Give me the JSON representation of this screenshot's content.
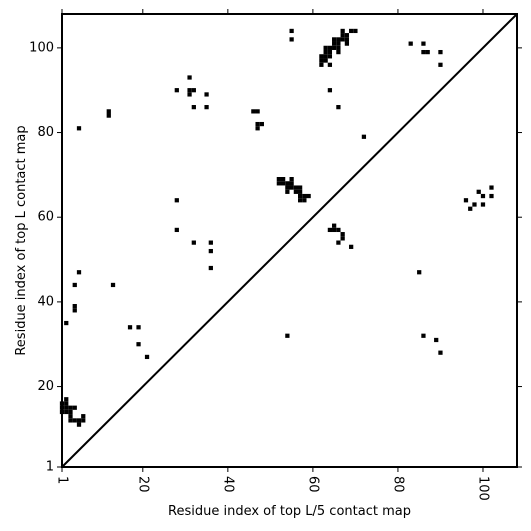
{
  "chart_data": {
    "type": "scatter",
    "xlabel": "Residue index of top L/5 contact map",
    "ylabel": "Residue index of top L contact map",
    "xlim": [
      1,
      108
    ],
    "ylim": [
      1,
      108
    ],
    "x_ticks": [
      1,
      20,
      40,
      60,
      80,
      100
    ],
    "y_ticks": [
      1,
      20,
      40,
      60,
      80,
      100
    ],
    "diagonal_line": true,
    "marker": "square",
    "marker_color": "#000000",
    "points_upper": [
      [
        5,
        81
      ],
      [
        12,
        84
      ],
      [
        12,
        85
      ],
      [
        28,
        90
      ],
      [
        31,
        93
      ],
      [
        31,
        89
      ],
      [
        31,
        90
      ],
      [
        32,
        90
      ],
      [
        32,
        86
      ],
      [
        35,
        89
      ],
      [
        35,
        86
      ],
      [
        46,
        85
      ],
      [
        47,
        85
      ],
      [
        47,
        81
      ],
      [
        47,
        82
      ],
      [
        48,
        82
      ],
      [
        55,
        104
      ],
      [
        55,
        102
      ],
      [
        62,
        98
      ],
      [
        62,
        97
      ],
      [
        62,
        96
      ],
      [
        63,
        97
      ],
      [
        63,
        98
      ],
      [
        63,
        99
      ],
      [
        63,
        100
      ],
      [
        64,
        100
      ],
      [
        64,
        99
      ],
      [
        64,
        98
      ],
      [
        64,
        96
      ],
      [
        64,
        90
      ],
      [
        65,
        100
      ],
      [
        65,
        101
      ],
      [
        65,
        102
      ],
      [
        66,
        101
      ],
      [
        66,
        102
      ],
      [
        66,
        100
      ],
      [
        66,
        99
      ],
      [
        66,
        86
      ],
      [
        67,
        103
      ],
      [
        67,
        102
      ],
      [
        67,
        104
      ],
      [
        68,
        102
      ],
      [
        68,
        103
      ],
      [
        68,
        101
      ],
      [
        69,
        104
      ],
      [
        70,
        104
      ],
      [
        72,
        79
      ],
      [
        83,
        101
      ],
      [
        86,
        101
      ],
      [
        86,
        99
      ],
      [
        87,
        99
      ],
      [
        90,
        99
      ],
      [
        90,
        96
      ],
      [
        28,
        64
      ],
      [
        28,
        57
      ],
      [
        32,
        54
      ],
      [
        36,
        54
      ],
      [
        36,
        52
      ],
      [
        36,
        48
      ],
      [
        52,
        69
      ],
      [
        52,
        68
      ],
      [
        53,
        68
      ],
      [
        53,
        69
      ],
      [
        54,
        68
      ],
      [
        54,
        67
      ],
      [
        54,
        66
      ],
      [
        55,
        67
      ],
      [
        55,
        68
      ],
      [
        55,
        69
      ],
      [
        56,
        67
      ],
      [
        56,
        66
      ],
      [
        57,
        67
      ],
      [
        57,
        66
      ],
      [
        57,
        65
      ],
      [
        57,
        64
      ],
      [
        58,
        64
      ],
      [
        58,
        65
      ],
      [
        59,
        65
      ],
      [
        64,
        57
      ],
      [
        65,
        58
      ],
      [
        65,
        57
      ],
      [
        66,
        57
      ],
      [
        66,
        54
      ],
      [
        67,
        55
      ],
      [
        67,
        56
      ],
      [
        69,
        53
      ],
      [
        96,
        64
      ],
      [
        97,
        62
      ],
      [
        98,
        63
      ],
      [
        99,
        66
      ],
      [
        100,
        65
      ],
      [
        100,
        63
      ],
      [
        102,
        67
      ],
      [
        102,
        65
      ]
    ],
    "points_lower": [
      [
        5,
        47
      ],
      [
        4,
        44
      ],
      [
        4,
        39
      ],
      [
        4,
        38
      ],
      [
        2,
        35
      ],
      [
        13,
        44
      ],
      [
        17,
        34
      ],
      [
        19,
        34
      ],
      [
        19,
        30
      ],
      [
        21,
        27
      ],
      [
        1,
        15
      ],
      [
        1,
        16
      ],
      [
        1,
        14
      ],
      [
        2,
        14
      ],
      [
        2,
        15
      ],
      [
        2,
        16
      ],
      [
        2,
        17
      ],
      [
        3,
        15
      ],
      [
        3,
        14
      ],
      [
        3,
        13
      ],
      [
        3,
        12
      ],
      [
        4,
        15
      ],
      [
        4,
        12
      ],
      [
        5,
        12
      ],
      [
        5,
        11
      ],
      [
        6,
        12
      ],
      [
        6,
        13
      ],
      [
        54,
        32
      ],
      [
        85,
        47
      ],
      [
        86,
        32
      ],
      [
        89,
        31
      ],
      [
        90,
        28
      ]
    ]
  }
}
